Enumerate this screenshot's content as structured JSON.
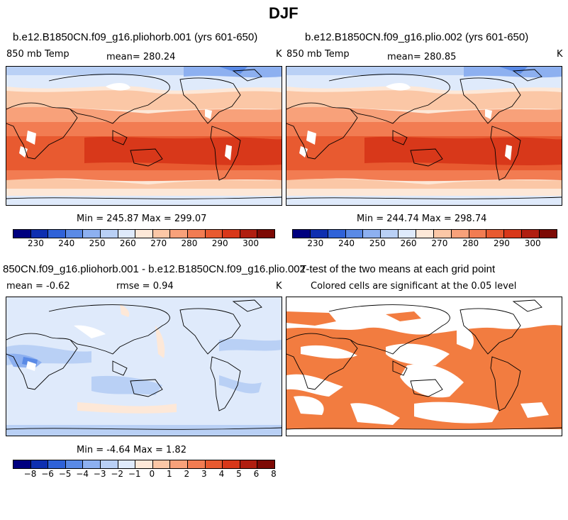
{
  "figure": {
    "season_title": "DJF"
  },
  "panels": [
    {
      "title": "b.e12.B1850CN.f09_g16.pliohorb.001 (yrs 601-650)",
      "left_label": "850 mb Temp",
      "mean_label": "mean= 280.24",
      "unit": "K",
      "minmax": "Min = 245.87 Max = 299.07"
    },
    {
      "title": "b.e12.B1850CN.f09_g16.plio.002 (yrs 601-650)",
      "left_label": "850 mb Temp",
      "mean_label": "mean= 280.85",
      "unit": "K",
      "minmax": "Min = 244.74 Max = 298.74"
    },
    {
      "title": "850CN.f09_g16.pliohorb.001 - b.e12.B1850CN.f09_g16.plio.002",
      "mean_label": "mean =  -0.62",
      "rmse_label": "rmse =   0.94",
      "unit": "K",
      "minmax": "Min =  -4.64 Max =   1.82"
    },
    {
      "title": "T-test of the two means at each grid point",
      "subtitle": "Colored cells are significant at the 0.05 level"
    }
  ],
  "colorbars": {
    "temp": {
      "colors": [
        "#00007f",
        "#0e2fb0",
        "#2f62d8",
        "#5a8ae6",
        "#8db0f0",
        "#b9d0f5",
        "#dfeafb",
        "#fde8d8",
        "#fbc7a6",
        "#f8a17a",
        "#f27c52",
        "#e85a30",
        "#d8381a",
        "#b01e10",
        "#7d0a05"
      ],
      "tick_labels": [
        "230",
        "240",
        "250",
        "260",
        "270",
        "280",
        "290",
        "300"
      ],
      "tick_values": [
        230,
        240,
        250,
        260,
        270,
        280,
        290,
        300
      ],
      "range": [
        222.5,
        307.5
      ]
    },
    "diff": {
      "colors": [
        "#00007f",
        "#0e2fb0",
        "#2f62d8",
        "#5a8ae6",
        "#8db0f0",
        "#b9d0f5",
        "#dfeafb",
        "#fde8d8",
        "#fbc7a6",
        "#f8a17a",
        "#f27c52",
        "#e85a30",
        "#d8381a",
        "#b01e10",
        "#7d0a05"
      ],
      "tick_labels": [
        "−8",
        "−6",
        "−5",
        "−4",
        "−3",
        "−2",
        "−1",
        "0",
        "1",
        "2",
        "3",
        "4",
        "5",
        "6",
        "8"
      ]
    }
  },
  "colors": {
    "ttest_significant": "#f27c40",
    "diff_background": "#dfeafb"
  }
}
